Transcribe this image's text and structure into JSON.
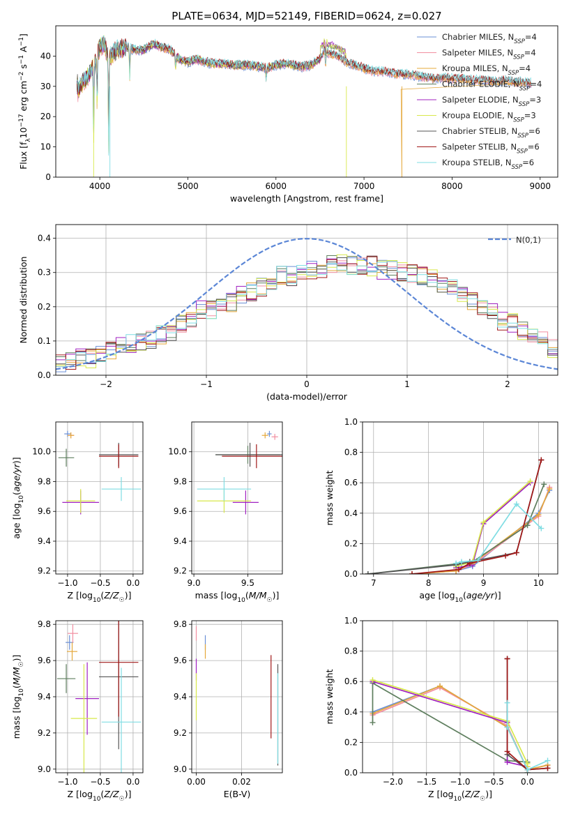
{
  "title": "PLATE=0634, MJD=52149, FIBERID=0624, z=0.027",
  "colors": [
    "#6a8fd6",
    "#f28ea0",
    "#e5a83a",
    "#5e7e5e",
    "#a020c0",
    "#d7e84a",
    "#555555",
    "#a01818",
    "#7fdde3"
  ],
  "chart_data": [
    {
      "id": "spectrum",
      "type": "line",
      "xlabel": "wavelength [Angstrom, rest frame]",
      "ylabel": "Flux [f_λ10^-17 erg cm^-2 s^-1 A^-1]",
      "xlim": [
        3500,
        9200
      ],
      "ylim": [
        0,
        50
      ],
      "xticks": [
        "4000",
        "5000",
        "6000",
        "7000",
        "8000",
        "9000"
      ],
      "yticks": [
        "0",
        "10",
        "20",
        "30",
        "40"
      ],
      "grid": false,
      "legend_position": "top-right",
      "legend": [
        {
          "base": "Chabrier MILES, N",
          "sub": "SSP",
          "tail": "=4"
        },
        {
          "base": "Salpeter MILES, N",
          "sub": "SSP",
          "tail": "=4"
        },
        {
          "base": "Kroupa MILES, N",
          "sub": "SSP",
          "tail": "=4"
        },
        {
          "base": "Chabrier ELODIE, N",
          "sub": "SSP",
          "tail": "=4"
        },
        {
          "base": "Salpeter ELODIE, N",
          "sub": "SSP",
          "tail": "=3"
        },
        {
          "base": "Kroupa ELODIE, N",
          "sub": "SSP",
          "tail": "=3"
        },
        {
          "base": "Chabrier STELIB, N",
          "sub": "SSP",
          "tail": "=6"
        },
        {
          "base": "Salpeter STELIB, N",
          "sub": "SSP",
          "tail": "=6"
        },
        {
          "base": "Kroupa STELIB, N",
          "sub": "SSP",
          "tail": "=6"
        }
      ],
      "x": [
        3750,
        3800,
        3850,
        3900,
        3950,
        4000,
        4050,
        4100,
        4150,
        4200,
        4300,
        4400,
        4500,
        4600,
        4700,
        4800,
        4900,
        5000,
        5100,
        5200,
        5300,
        5400,
        5500,
        5600,
        5700,
        5800,
        5900,
        6000,
        6100,
        6200,
        6300,
        6400,
        6500,
        6550,
        6600,
        6700,
        6800,
        6900,
        7000,
        7100,
        7200,
        7300,
        7400,
        7500,
        7600,
        7700,
        7800,
        7900,
        8000,
        8100,
        8200,
        8300,
        8400,
        8500,
        8600,
        8700,
        8800,
        8900
      ],
      "y": [
        28,
        31,
        33,
        35,
        38,
        43,
        44,
        39,
        41,
        42,
        43,
        42,
        42,
        44,
        43,
        42,
        39,
        38,
        39,
        38,
        37.5,
        37.5,
        37,
        37,
        37,
        36.5,
        36,
        37,
        37.5,
        37,
        36.5,
        37,
        39,
        42,
        41,
        40,
        38,
        37,
        36,
        35,
        35,
        34.5,
        34,
        34,
        33.5,
        33,
        32.5,
        33,
        32.5,
        32.5,
        32,
        32,
        32,
        31.5,
        32,
        31.5,
        31.5,
        31
      ]
    },
    {
      "id": "residuals",
      "type": "bar",
      "xlabel": "(data-model)/error",
      "ylabel": "Normed distribution",
      "xlim": [
        -2.5,
        2.5
      ],
      "ylim": [
        0,
        0.44
      ],
      "xticks": [
        "−2",
        "−1",
        "0",
        "1",
        "2"
      ],
      "yticks": [
        "0.0",
        "0.1",
        "0.2",
        "0.3",
        "0.4"
      ],
      "grid": true,
      "legend_position": "top-right",
      "legend_label": "N(0,1)",
      "bin_edges_start": -2.5,
      "bin_width": 0.1,
      "values": [
        0.04,
        0.04,
        0.05,
        0.05,
        0.06,
        0.07,
        0.08,
        0.09,
        0.1,
        0.1,
        0.12,
        0.13,
        0.15,
        0.17,
        0.19,
        0.19,
        0.2,
        0.21,
        0.23,
        0.24,
        0.26,
        0.28,
        0.29,
        0.29,
        0.3,
        0.31,
        0.31,
        0.32,
        0.33,
        0.32,
        0.32,
        0.32,
        0.31,
        0.31,
        0.3,
        0.3,
        0.29,
        0.28,
        0.26,
        0.25,
        0.23,
        0.22,
        0.2,
        0.18,
        0.16,
        0.15,
        0.13,
        0.11,
        0.1,
        0.08
      ]
    },
    {
      "id": "age-vs-Z",
      "type": "scatter",
      "xlabel": "Z [log10(Z/Z☉)]",
      "ylabel": "age [log10(age/yr)]",
      "xlim": [
        -1.18,
        0.15
      ],
      "ylim": [
        9.18,
        10.2
      ],
      "xticks": [
        "−1.0",
        "−0.5",
        "0.0"
      ],
      "yticks": [
        "9.2",
        "9.4",
        "9.6",
        "9.8",
        "10.0"
      ],
      "grid": true,
      "points": [
        {
          "x": -1.0,
          "y": 10.12,
          "xerr": 0.05,
          "yerr": 0.02,
          "c": 0
        },
        {
          "x": -0.95,
          "y": 10.11,
          "xerr": 0.05,
          "yerr": 0.02,
          "c": 1
        },
        {
          "x": -0.95,
          "y": 10.11,
          "xerr": 0.05,
          "yerr": 0.02,
          "c": 2
        },
        {
          "x": -1.02,
          "y": 9.96,
          "xerr": 0.12,
          "yerr": 0.06,
          "c": 3
        },
        {
          "x": -0.8,
          "y": 9.66,
          "xerr": 0.28,
          "yerr": 0.08,
          "c": 4
        },
        {
          "x": -0.8,
          "y": 9.67,
          "xerr": 0.22,
          "yerr": 0.08,
          "c": 5
        },
        {
          "x": -0.22,
          "y": 9.98,
          "xerr": 0.3,
          "yerr": 0.08,
          "c": 6
        },
        {
          "x": -0.22,
          "y": 9.97,
          "xerr": 0.3,
          "yerr": 0.08,
          "c": 7
        },
        {
          "x": -0.18,
          "y": 9.75,
          "xerr": 0.3,
          "yerr": 0.08,
          "c": 8
        }
      ]
    },
    {
      "id": "age-vs-mass",
      "type": "scatter",
      "xlabel": "mass [log10(M/M☉)]",
      "ylabel": "",
      "xlim": [
        8.98,
        9.82
      ],
      "ylim": [
        9.18,
        10.2
      ],
      "xticks": [
        "9.0",
        "9.5"
      ],
      "yticks": [
        "9.2",
        "9.4",
        "9.6",
        "9.8",
        "10.0"
      ],
      "grid": true,
      "points": [
        {
          "x": 9.7,
          "y": 10.12,
          "xerr": 0.02,
          "yerr": 0.02,
          "c": 0
        },
        {
          "x": 9.75,
          "y": 10.1,
          "xerr": 0.03,
          "yerr": 0.02,
          "c": 1
        },
        {
          "x": 9.66,
          "y": 10.11,
          "xerr": 0.03,
          "yerr": 0.02,
          "c": 2
        },
        {
          "x": 9.5,
          "y": 9.98,
          "xerr": 0.3,
          "yerr": 0.06,
          "c": 3
        },
        {
          "x": 9.48,
          "y": 9.66,
          "xerr": 0.12,
          "yerr": 0.08,
          "c": 4
        },
        {
          "x": 9.28,
          "y": 9.67,
          "xerr": 0.25,
          "yerr": 0.08,
          "c": 5
        },
        {
          "x": 9.52,
          "y": 9.98,
          "xerr": 0.32,
          "yerr": 0.08,
          "c": 6
        },
        {
          "x": 9.58,
          "y": 9.97,
          "xerr": 0.32,
          "yerr": 0.08,
          "c": 7
        },
        {
          "x": 9.28,
          "y": 9.75,
          "xerr": 0.25,
          "yerr": 0.08,
          "c": 8
        }
      ]
    },
    {
      "id": "mass-weight-vs-age",
      "type": "line",
      "xlabel": "age [log10(age/yr)]",
      "ylabel": "mass weight",
      "xlim": [
        6.8,
        10.35
      ],
      "ylim": [
        0,
        1
      ],
      "xticks": [
        "7",
        "8",
        "9",
        "10"
      ],
      "yticks": [
        "0.0",
        "0.2",
        "0.4",
        "0.6",
        "0.8",
        "1.0"
      ],
      "grid": true,
      "series": [
        {
          "c": 0,
          "x": [
            7.7,
            8.5,
            8.8,
            10.0,
            10.2
          ],
          "y": [
            0.0,
            0.02,
            0.05,
            0.4,
            0.55
          ]
        },
        {
          "c": 1,
          "x": [
            7.7,
            8.5,
            8.8,
            10.0,
            10.2
          ],
          "y": [
            0.0,
            0.02,
            0.06,
            0.38,
            0.57
          ]
        },
        {
          "c": 2,
          "x": [
            7.7,
            8.5,
            8.8,
            10.0,
            10.2
          ],
          "y": [
            0.0,
            0.02,
            0.07,
            0.39,
            0.56
          ]
        },
        {
          "c": 3,
          "x": [
            6.9,
            8.6,
            8.8,
            9.8,
            10.1
          ],
          "y": [
            0.0,
            0.07,
            0.08,
            0.32,
            0.59
          ]
        },
        {
          "c": 4,
          "x": [
            8.5,
            8.8,
            9.0,
            9.85
          ],
          "y": [
            0.04,
            0.06,
            0.33,
            0.6
          ]
        },
        {
          "c": 5,
          "x": [
            8.5,
            8.8,
            9.0,
            9.85
          ],
          "y": [
            0.05,
            0.08,
            0.34,
            0.61
          ]
        },
        {
          "c": 6,
          "x": [
            6.9,
            8.5,
            8.75,
            9.6,
            10.05
          ],
          "y": [
            0.0,
            0.06,
            0.08,
            0.14,
            0.75
          ]
        },
        {
          "c": 7,
          "x": [
            7.7,
            8.55,
            8.75,
            9.4,
            9.6,
            10.05
          ],
          "y": [
            0.0,
            0.03,
            0.07,
            0.12,
            0.14,
            0.75
          ]
        },
        {
          "c": 8,
          "x": [
            8.5,
            8.6,
            8.9,
            9.6,
            10.05
          ],
          "y": [
            0.07,
            0.08,
            0.09,
            0.46,
            0.3
          ]
        }
      ]
    },
    {
      "id": "mass-vs-Z",
      "type": "scatter",
      "xlabel": "Z [log10(Z/Z☉)]",
      "ylabel": "mass [log10(M/M☉)]",
      "xlim": [
        -1.18,
        0.15
      ],
      "ylim": [
        8.98,
        9.82
      ],
      "xticks": [
        "−1.0",
        "−0.5",
        "0.0"
      ],
      "yticks": [
        "9.0",
        "9.2",
        "9.4",
        "9.6",
        "9.8"
      ],
      "grid": true,
      "points": [
        {
          "x": -0.97,
          "y": 9.7,
          "xerr": 0.06,
          "yerr": 0.04,
          "c": 0
        },
        {
          "x": -0.92,
          "y": 9.75,
          "xerr": 0.08,
          "yerr": 0.05,
          "c": 1
        },
        {
          "x": -0.93,
          "y": 9.65,
          "xerr": 0.08,
          "yerr": 0.05,
          "c": 2
        },
        {
          "x": -1.02,
          "y": 9.5,
          "xerr": 0.14,
          "yerr": 0.08,
          "c": 3
        },
        {
          "x": -0.7,
          "y": 9.39,
          "xerr": 0.18,
          "yerr": 0.2,
          "c": 4
        },
        {
          "x": -0.75,
          "y": 9.28,
          "xerr": 0.2,
          "yerr": 0.3,
          "c": 5
        },
        {
          "x": -0.22,
          "y": 9.51,
          "xerr": 0.3,
          "yerr": 0.4,
          "c": 6
        },
        {
          "x": -0.22,
          "y": 9.59,
          "xerr": 0.3,
          "yerr": 0.3,
          "c": 7
        },
        {
          "x": -0.18,
          "y": 9.26,
          "xerr": 0.3,
          "yerr": 0.3,
          "c": 8
        }
      ]
    },
    {
      "id": "mass-vs-EBV",
      "type": "scatter",
      "xlabel": "E(B-V)",
      "ylabel": "",
      "xlim": [
        -0.002,
        0.038
      ],
      "ylim": [
        8.98,
        9.82
      ],
      "xticks": [
        "0.00",
        "0.02"
      ],
      "yticks": [
        "9.0",
        "9.2",
        "9.4",
        "9.6",
        "9.8"
      ],
      "grid": true,
      "points": [
        {
          "x": 0.0,
          "y": 9.75,
          "xerr": 0.0,
          "yerr": 0.04,
          "c": 1
        },
        {
          "x": 0.004,
          "y": 9.7,
          "xerr": 0.0,
          "yerr": 0.04,
          "c": 0
        },
        {
          "x": 0.004,
          "y": 9.65,
          "xerr": 0.0,
          "yerr": 0.04,
          "c": 2
        },
        {
          "x": 0.0,
          "y": 9.55,
          "xerr": 0.0,
          "yerr": 0.06,
          "c": 4
        },
        {
          "x": 0.0,
          "y": 9.4,
          "xerr": 0.0,
          "yerr": 0.13,
          "c": 5
        },
        {
          "x": 0.033,
          "y": 9.4,
          "xerr": 0.0,
          "yerr": 0.23,
          "c": 7
        },
        {
          "x": 0.036,
          "y": 9.3,
          "xerr": 0.0,
          "yerr": 0.28,
          "c": 6
        },
        {
          "x": 0.036,
          "y": 9.28,
          "xerr": 0.0,
          "yerr": 0.25,
          "c": 8
        }
      ]
    },
    {
      "id": "mass-weight-vs-Z",
      "type": "line",
      "xlabel": "Z [log10(Z/Z☉)]",
      "ylabel": "mass weight",
      "xlim": [
        -2.45,
        0.45
      ],
      "ylim": [
        0,
        1
      ],
      "xticks": [
        "−2.0",
        "−1.5",
        "−1.0",
        "−0.5",
        "0.0"
      ],
      "yticks": [
        "0.0",
        "0.2",
        "0.4",
        "0.6",
        "0.8",
        "1.0"
      ],
      "grid": true,
      "series": [
        {
          "c": 0,
          "x": [
            -2.3,
            -1.3,
            -0.3,
            0.0,
            0.3
          ],
          "y": [
            0.4,
            0.57,
            0.3,
            0.02,
            0.05
          ]
        },
        {
          "c": 1,
          "x": [
            -2.3,
            -1.3,
            -0.3,
            0.0,
            0.3
          ],
          "y": [
            0.38,
            0.56,
            0.31,
            0.02,
            0.05
          ]
        },
        {
          "c": 2,
          "x": [
            -2.3,
            -1.3,
            -0.3,
            0.0,
            0.3
          ],
          "y": [
            0.39,
            0.57,
            0.3,
            0.02,
            0.05
          ]
        },
        {
          "c": 3,
          "x": [
            -2.3,
            -2.3,
            -0.3,
            0.0,
            0.0
          ],
          "y": [
            0.33,
            0.59,
            0.08,
            0.07,
            0.0
          ]
        },
        {
          "c": 4,
          "x": [
            -2.3,
            -0.3,
            -0.3,
            0.0
          ],
          "y": [
            0.6,
            0.33,
            0.07,
            0.04
          ]
        },
        {
          "c": 5,
          "x": [
            -2.3,
            -0.3,
            0.0,
            0.0
          ],
          "y": [
            0.61,
            0.34,
            0.06,
            0.04
          ]
        },
        {
          "c": 6,
          "x": [
            -0.3,
            -0.3,
            0.0,
            0.3
          ],
          "y": [
            0.75,
            0.12,
            0.02,
            0.03
          ]
        },
        {
          "c": 7,
          "x": [
            -0.3,
            -0.3,
            0.0,
            0.3
          ],
          "y": [
            0.75,
            0.14,
            0.02,
            0.03
          ]
        },
        {
          "c": 8,
          "x": [
            -0.3,
            -0.3,
            0.0,
            0.3
          ],
          "y": [
            0.46,
            0.3,
            0.02,
            0.08
          ]
        }
      ]
    }
  ]
}
